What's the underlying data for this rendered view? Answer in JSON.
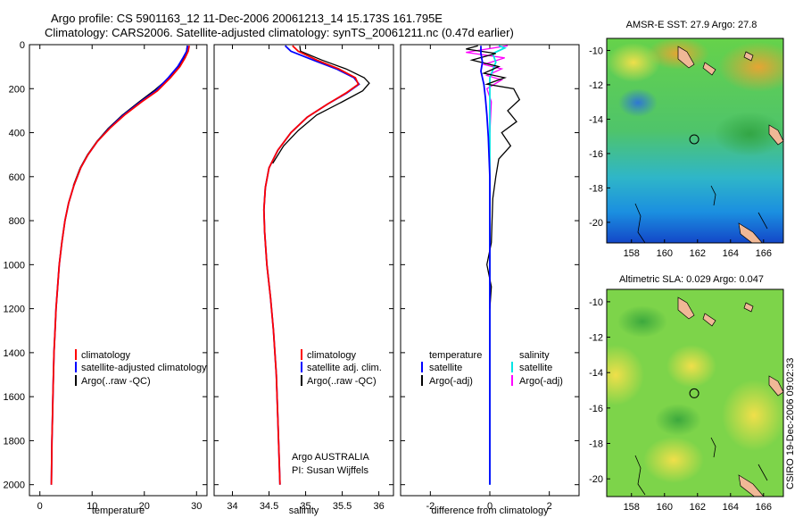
{
  "header": {
    "line1": "Argo profile: CS 5901163_12 11-Dec-2006 20061213_14 15.173S 161.795E",
    "line2": "Climatology: CARS2006. Satellite-adjusted climatology: synTS_20061211.nc (0.47d earlier)"
  },
  "credit": "CSIRO 19-Dec-2006 09:02:33",
  "colors": {
    "clim": "#ff0000",
    "sat": "#0000ff",
    "argo": "#000000",
    "sat_diff_sal": "#00e5e5",
    "argo_diff_sal": "#ff00ff"
  },
  "chart_data": [
    {
      "type": "line",
      "id": "temperature",
      "xlabel": "temperature",
      "xlim": [
        -2,
        32
      ],
      "ylim": [
        0,
        2050
      ],
      "y_reversed": true,
      "xticks": [
        0,
        10,
        20,
        30
      ],
      "yticks": [
        0,
        200,
        400,
        600,
        800,
        1000,
        1200,
        1400,
        1600,
        1800,
        2000
      ],
      "legend": [
        "climatology",
        "satellite-adjusted climatology",
        "Argo(..raw -QC)"
      ],
      "series": [
        {
          "name": "climatology",
          "points": [
            [
              28.6,
              5
            ],
            [
              28.4,
              30
            ],
            [
              27.8,
              60
            ],
            [
              26.8,
              100
            ],
            [
              25,
              150
            ],
            [
              22.5,
              210
            ],
            [
              19.5,
              260
            ],
            [
              16.2,
              320
            ],
            [
              13.4,
              380
            ],
            [
              11,
              440
            ],
            [
              9.2,
              500
            ],
            [
              7.8,
              560
            ],
            [
              6.5,
              640
            ],
            [
              5.5,
              720
            ],
            [
              4.8,
              800
            ],
            [
              4.2,
              900
            ],
            [
              3.7,
              1000
            ],
            [
              3.4,
              1100
            ],
            [
              3.1,
              1200
            ],
            [
              2.9,
              1300
            ],
            [
              2.7,
              1400
            ],
            [
              2.6,
              1500
            ],
            [
              2.5,
              1600
            ],
            [
              2.4,
              1700
            ],
            [
              2.3,
              1800
            ],
            [
              2.25,
              1900
            ],
            [
              2.2,
              2000
            ]
          ]
        },
        {
          "name": "satellite",
          "points": [
            [
              28.3,
              5
            ],
            [
              28.1,
              30
            ],
            [
              27.4,
              60
            ],
            [
              26.4,
              100
            ],
            [
              24.6,
              150
            ],
            [
              22.2,
              210
            ],
            [
              19.3,
              260
            ],
            [
              16,
              320
            ],
            [
              13.3,
              380
            ],
            [
              11,
              440
            ],
            [
              9.2,
              500
            ],
            [
              7.8,
              560
            ],
            [
              6.5,
              640
            ],
            [
              5.5,
              720
            ],
            [
              4.8,
              800
            ],
            [
              4.2,
              900
            ],
            [
              3.7,
              1000
            ],
            [
              3.4,
              1100
            ],
            [
              3.1,
              1200
            ],
            [
              2.9,
              1300
            ],
            [
              2.7,
              1400
            ],
            [
              2.6,
              1500
            ],
            [
              2.5,
              1600
            ],
            [
              2.4,
              1700
            ],
            [
              2.3,
              1800
            ],
            [
              2.25,
              1900
            ],
            [
              2.2,
              2000
            ]
          ]
        },
        {
          "name": "argo",
          "points": [
            [
              28.2,
              5
            ],
            [
              28,
              40
            ],
            [
              27.2,
              80
            ],
            [
              26,
              120
            ],
            [
              24.3,
              160
            ],
            [
              21.8,
              210
            ],
            [
              19,
              260
            ],
            [
              15.8,
              320
            ],
            [
              13.1,
              380
            ],
            [
              10.9,
              440
            ],
            [
              9.1,
              500
            ],
            [
              7.7,
              560
            ],
            [
              6.4,
              640
            ]
          ]
        }
      ]
    },
    {
      "type": "line",
      "id": "salinity",
      "xlabel": "salinity",
      "xlim": [
        33.75,
        36.2
      ],
      "ylim": [
        0,
        2050
      ],
      "y_reversed": true,
      "xticks": [
        34,
        34.5,
        35,
        35.5,
        36
      ],
      "legend": [
        "climatology",
        "satellite adj. clim.",
        "Argo(..raw -QC)"
      ],
      "annotation": [
        "Argo AUSTRALIA",
        "PI: Susan Wijffels"
      ],
      "series": [
        {
          "name": "climatology",
          "points": [
            [
              34.82,
              5
            ],
            [
              34.9,
              30
            ],
            [
              35.15,
              70
            ],
            [
              35.45,
              110
            ],
            [
              35.68,
              150
            ],
            [
              35.72,
              180
            ],
            [
              35.55,
              220
            ],
            [
              35.3,
              270
            ],
            [
              35.02,
              330
            ],
            [
              34.8,
              400
            ],
            [
              34.62,
              480
            ],
            [
              34.5,
              560
            ],
            [
              34.45,
              650
            ],
            [
              34.43,
              750
            ],
            [
              34.44,
              850
            ],
            [
              34.47,
              1000
            ],
            [
              34.52,
              1150
            ],
            [
              34.56,
              1300
            ],
            [
              34.6,
              1500
            ],
            [
              34.62,
              1700
            ],
            [
              34.64,
              1900
            ],
            [
              34.65,
              2000
            ]
          ]
        },
        {
          "name": "satellite",
          "points": [
            [
              34.72,
              5
            ],
            [
              34.8,
              30
            ],
            [
              35.1,
              70
            ],
            [
              35.42,
              110
            ],
            [
              35.66,
              150
            ],
            [
              35.73,
              180
            ],
            [
              35.56,
              220
            ],
            [
              35.3,
              270
            ],
            [
              35.02,
              330
            ],
            [
              34.8,
              400
            ],
            [
              34.62,
              480
            ],
            [
              34.5,
              560
            ],
            [
              34.45,
              650
            ],
            [
              34.43,
              750
            ],
            [
              34.44,
              850
            ],
            [
              34.47,
              1000
            ],
            [
              34.52,
              1150
            ],
            [
              34.56,
              1300
            ],
            [
              34.6,
              1500
            ],
            [
              34.62,
              1700
            ],
            [
              34.64,
              1900
            ],
            [
              34.65,
              2000
            ]
          ]
        },
        {
          "name": "argo",
          "points": [
            [
              34.92,
              5
            ],
            [
              34.93,
              30
            ],
            [
              35.22,
              70
            ],
            [
              35.55,
              110
            ],
            [
              35.8,
              150
            ],
            [
              35.87,
              175
            ],
            [
              35.78,
              210
            ],
            [
              35.5,
              260
            ],
            [
              35.15,
              320
            ],
            [
              34.9,
              390
            ],
            [
              34.7,
              460
            ],
            [
              34.55,
              540
            ]
          ]
        }
      ]
    },
    {
      "type": "line",
      "id": "difference",
      "xlabel": "difference from climatology",
      "xlim": [
        -3,
        3
      ],
      "ylim": [
        0,
        2050
      ],
      "y_reversed": true,
      "xticks": [
        -2,
        0,
        2
      ],
      "legend": [
        "temperature",
        "satellite",
        "Argo(-adj)",
        "salinity",
        "satellite",
        "Argo(-adj)"
      ],
      "series": [
        {
          "name": "temperature satellite",
          "points": [
            [
              -0.3,
              5
            ],
            [
              -0.3,
              40
            ],
            [
              -0.25,
              80
            ],
            [
              -0.3,
              120
            ],
            [
              -0.2,
              180
            ],
            [
              -0.15,
              240
            ],
            [
              -0.1,
              320
            ],
            [
              -0.05,
              420
            ],
            [
              0,
              600
            ],
            [
              0,
              2000
            ]
          ]
        },
        {
          "name": "temperature Argo",
          "points": [
            [
              -0.4,
              5
            ],
            [
              -0.8,
              20
            ],
            [
              0.2,
              40
            ],
            [
              -0.6,
              70
            ],
            [
              0.3,
              100
            ],
            [
              -0.2,
              130
            ],
            [
              0.5,
              150
            ],
            [
              -0.1,
              180
            ],
            [
              0.8,
              200
            ],
            [
              1,
              250
            ],
            [
              0.6,
              300
            ],
            [
              0.9,
              350
            ],
            [
              0.4,
              400
            ],
            [
              0.7,
              460
            ],
            [
              0.3,
              520
            ],
            [
              0.2,
              600
            ],
            [
              0.1,
              700
            ],
            [
              0.05,
              900
            ],
            [
              -0.1,
              1000
            ],
            [
              0.05,
              1100
            ],
            [
              0,
              1200
            ]
          ]
        },
        {
          "name": "salinity satellite",
          "points": [
            [
              0.3,
              5
            ],
            [
              0.5,
              15
            ],
            [
              0.1,
              40
            ],
            [
              0.2,
              80
            ],
            [
              0,
              150
            ],
            [
              0,
              2000
            ]
          ]
        },
        {
          "name": "salinity Argo",
          "points": [
            [
              0.6,
              5
            ],
            [
              -0.8,
              35
            ],
            [
              0.5,
              60
            ],
            [
              -0.2,
              90
            ],
            [
              0.4,
              110
            ],
            [
              -0.1,
              140
            ],
            [
              0.4,
              160
            ],
            [
              -0.1,
              200
            ],
            [
              0.05,
              260
            ],
            [
              0,
              400
            ]
          ]
        }
      ]
    },
    {
      "type": "heatmap",
      "id": "sst-map",
      "title": "AMSR-E SST: 27.9 Argo: 27.8",
      "xlim": [
        156.5,
        167.2
      ],
      "ylim": [
        -21.2,
        -9.3
      ],
      "xticks": [
        158,
        160,
        162,
        164,
        166
      ],
      "yticks": [
        -10,
        -12,
        -14,
        -16,
        -18,
        -20
      ],
      "marker": {
        "lon": 161.8,
        "lat": -15.17
      }
    },
    {
      "type": "heatmap",
      "id": "sla-map",
      "title": "Altimetric SLA: 0.029 Argo: 0.047",
      "xlim": [
        156.5,
        167.2
      ],
      "ylim": [
        -21.0,
        -9.3
      ],
      "xticks": [
        158,
        160,
        162,
        164,
        166
      ],
      "yticks": [
        -10,
        -12,
        -14,
        -16,
        -18,
        -20
      ],
      "marker": {
        "lon": 161.8,
        "lat": -15.17
      }
    }
  ]
}
